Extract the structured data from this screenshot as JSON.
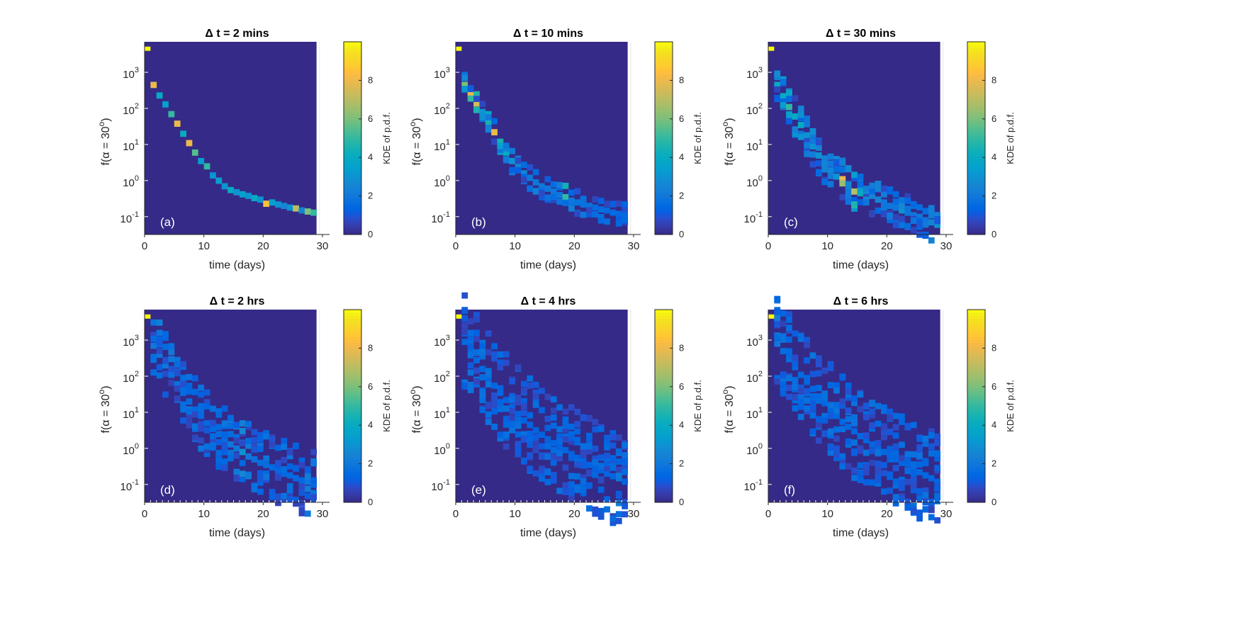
{
  "chart_data": [
    {
      "type": "heatmap",
      "title": "Δ t = 2 mins",
      "panel_label": "(a)",
      "xlabel": "time (days)",
      "ylabel": "f(α = 30°)",
      "xlim": [
        0,
        30
      ],
      "xticks": [
        "0",
        "10",
        "20",
        "30"
      ],
      "yscale": "log",
      "yticks": [
        "10^-1",
        "10^0",
        "10^1",
        "10^2",
        "10^3"
      ],
      "colorbar": {
        "label": "KDE of p.d.f.",
        "range": [
          0,
          10
        ],
        "ticks": [
          "0",
          "2",
          "4",
          "6",
          "8"
        ]
      },
      "spread": 0.05,
      "initial_cell": {
        "day": 0.5,
        "f": 4500,
        "density": 10
      },
      "ridge": [
        {
          "day": 1.5,
          "f": 450,
          "density": 8.0
        },
        {
          "day": 2.5,
          "f": 230,
          "density": 4.0
        },
        {
          "day": 3.5,
          "f": 130,
          "density": 3.5
        },
        {
          "day": 4.5,
          "f": 70,
          "density": 5.0
        },
        {
          "day": 5.5,
          "f": 38,
          "density": 8.0
        },
        {
          "day": 6.5,
          "f": 20,
          "density": 4.0
        },
        {
          "day": 7.5,
          "f": 11,
          "density": 8.0
        },
        {
          "day": 8.5,
          "f": 6,
          "density": 5.5
        },
        {
          "day": 9.5,
          "f": 3.5,
          "density": 3.5
        },
        {
          "day": 10.5,
          "f": 2.5,
          "density": 5.0
        },
        {
          "day": 11.5,
          "f": 1.4,
          "density": 3.0
        },
        {
          "day": 12.5,
          "f": 1.0,
          "density": 3.5
        },
        {
          "day": 13.5,
          "f": 0.7,
          "density": 3.0
        },
        {
          "day": 14.5,
          "f": 0.55,
          "density": 4.0
        },
        {
          "day": 15.5,
          "f": 0.48,
          "density": 3.0
        },
        {
          "day": 16.5,
          "f": 0.42,
          "density": 3.5
        },
        {
          "day": 17.5,
          "f": 0.38,
          "density": 3.0
        },
        {
          "day": 18.5,
          "f": 0.33,
          "density": 4.0
        },
        {
          "day": 19.5,
          "f": 0.3,
          "density": 3.0
        },
        {
          "day": 20.5,
          "f": 0.23,
          "density": 8.5
        },
        {
          "day": 21.5,
          "f": 0.25,
          "density": 3.5
        },
        {
          "day": 22.5,
          "f": 0.22,
          "density": 3.0
        },
        {
          "day": 23.5,
          "f": 0.2,
          "density": 2.5
        },
        {
          "day": 24.5,
          "f": 0.18,
          "density": 3.0
        },
        {
          "day": 25.5,
          "f": 0.17,
          "density": 7.0
        },
        {
          "day": 26.5,
          "f": 0.15,
          "density": 2.5
        },
        {
          "day": 27.5,
          "f": 0.14,
          "density": 6.0
        },
        {
          "day": 28.5,
          "f": 0.13,
          "density": 5.0
        }
      ]
    },
    {
      "type": "heatmap",
      "title": "Δ t = 10 mins",
      "panel_label": "(b)",
      "xlabel": "time (days)",
      "ylabel": "f(α = 30°)",
      "xlim": [
        0,
        30
      ],
      "xticks": [
        "0",
        "10",
        "20",
        "30"
      ],
      "yscale": "log",
      "yticks": [
        "10^-1",
        "10^0",
        "10^1",
        "10^2",
        "10^3"
      ],
      "colorbar": {
        "label": "KDE of p.d.f.",
        "range": [
          0,
          10
        ],
        "ticks": [
          "0",
          "2",
          "4",
          "6",
          "8"
        ]
      },
      "spread": 0.25,
      "initial_cell": {
        "day": 0.5,
        "f": 4500,
        "density": 10
      },
      "ridge": [
        {
          "day": 1.5,
          "f": 450,
          "density": 6.0
        },
        {
          "day": 2.5,
          "f": 270,
          "density": 8.0
        },
        {
          "day": 3.5,
          "f": 140,
          "density": 7.5
        },
        {
          "day": 4.5,
          "f": 80,
          "density": 3.0
        },
        {
          "day": 5.5,
          "f": 40,
          "density": 4.5
        },
        {
          "day": 6.5,
          "f": 22,
          "density": 8.0
        },
        {
          "day": 7.5,
          "f": 12,
          "density": 4.5
        },
        {
          "day": 8.5,
          "f": 6,
          "density": 4.0
        },
        {
          "day": 9.5,
          "f": 3.5,
          "density": 3.0
        },
        {
          "day": 10.5,
          "f": 2.5,
          "density": 2.5
        },
        {
          "day": 11.5,
          "f": 1.6,
          "density": 2.5
        },
        {
          "day": 12.5,
          "f": 1.2,
          "density": 2.0
        },
        {
          "day": 13.5,
          "f": 0.9,
          "density": 2.0
        },
        {
          "day": 14.5,
          "f": 0.7,
          "density": 2.0
        },
        {
          "day": 15.5,
          "f": 0.6,
          "density": 2.0
        },
        {
          "day": 16.5,
          "f": 0.5,
          "density": 2.0
        },
        {
          "day": 17.5,
          "f": 0.4,
          "density": 2.0
        },
        {
          "day": 18.5,
          "f": 0.35,
          "density": 5.0
        },
        {
          "day": 19.5,
          "f": 0.28,
          "density": 2.0
        },
        {
          "day": 20.5,
          "f": 0.25,
          "density": 1.8
        },
        {
          "day": 21.5,
          "f": 0.22,
          "density": 1.8
        },
        {
          "day": 22.5,
          "f": 0.2,
          "density": 1.8
        },
        {
          "day": 23.5,
          "f": 0.18,
          "density": 1.6
        },
        {
          "day": 24.5,
          "f": 0.16,
          "density": 1.6
        },
        {
          "day": 25.5,
          "f": 0.15,
          "density": 1.5
        },
        {
          "day": 26.5,
          "f": 0.13,
          "density": 1.5
        },
        {
          "day": 27.5,
          "f": 0.12,
          "density": 1.5
        },
        {
          "day": 28.5,
          "f": 0.11,
          "density": 1.5
        }
      ]
    },
    {
      "type": "heatmap",
      "title": "Δ t = 30 mins",
      "panel_label": "(c)",
      "xlabel": "time (days)",
      "ylabel": "f(α = 30°)",
      "xlim": [
        0,
        30
      ],
      "xticks": [
        "0",
        "10",
        "20",
        "30"
      ],
      "yscale": "log",
      "yticks": [
        "10^-1",
        "10^0",
        "10^1",
        "10^2",
        "10^3"
      ],
      "colorbar": {
        "label": "KDE of p.d.f.",
        "range": [
          0,
          10
        ],
        "ticks": [
          "0",
          "2",
          "4",
          "6",
          "8"
        ]
      },
      "spread": 0.4,
      "initial_cell": {
        "day": 0.5,
        "f": 4500,
        "density": 10
      },
      "ridge": [
        {
          "day": 1.5,
          "f": 450,
          "density": 4.0
        },
        {
          "day": 2.5,
          "f": 220,
          "density": 4.0
        },
        {
          "day": 3.5,
          "f": 110,
          "density": 5.0
        },
        {
          "day": 4.5,
          "f": 60,
          "density": 4.0
        },
        {
          "day": 5.5,
          "f": 35,
          "density": 4.0
        },
        {
          "day": 6.5,
          "f": 18,
          "density": 3.0
        },
        {
          "day": 7.5,
          "f": 9,
          "density": 3.0
        },
        {
          "day": 8.5,
          "f": 5,
          "density": 3.0
        },
        {
          "day": 9.5,
          "f": 3,
          "density": 2.5
        },
        {
          "day": 10.5,
          "f": 2.0,
          "density": 2.5
        },
        {
          "day": 11.5,
          "f": 1.3,
          "density": 3.0
        },
        {
          "day": 12.5,
          "f": 1.1,
          "density": 8.0
        },
        {
          "day": 13.5,
          "f": 0.8,
          "density": 2.5
        },
        {
          "day": 14.5,
          "f": 0.5,
          "density": 7.0
        },
        {
          "day": 15.5,
          "f": 0.45,
          "density": 4.0
        },
        {
          "day": 16.5,
          "f": 0.45,
          "density": 3.0
        },
        {
          "day": 17.5,
          "f": 0.38,
          "density": 2.5
        },
        {
          "day": 18.5,
          "f": 0.3,
          "density": 2.5
        },
        {
          "day": 19.5,
          "f": 0.25,
          "density": 2.0
        },
        {
          "day": 20.5,
          "f": 0.2,
          "density": 2.0
        },
        {
          "day": 21.5,
          "f": 0.18,
          "density": 2.0
        },
        {
          "day": 22.5,
          "f": 0.15,
          "density": 3.0
        },
        {
          "day": 23.5,
          "f": 0.13,
          "density": 2.0
        },
        {
          "day": 24.5,
          "f": 0.11,
          "density": 2.0
        },
        {
          "day": 25.5,
          "f": 0.1,
          "density": 2.0
        },
        {
          "day": 26.5,
          "f": 0.08,
          "density": 2.0
        },
        {
          "day": 27.5,
          "f": 0.07,
          "density": 2.5
        },
        {
          "day": 28.5,
          "f": 0.06,
          "density": 3.0
        }
      ]
    },
    {
      "type": "heatmap",
      "title": "Δ t = 2 hrs",
      "panel_label": "(d)",
      "xlabel": "time (days)",
      "ylabel": "f(α = 30°)",
      "xlim": [
        0,
        30
      ],
      "xticks": [
        "0",
        "10",
        "20",
        "30"
      ],
      "yscale": "log",
      "yticks": [
        "10^-1",
        "10^0",
        "10^1",
        "10^2",
        "10^3"
      ],
      "colorbar": {
        "label": "KDE of p.d.f.",
        "range": [
          0,
          10
        ],
        "ticks": [
          "0",
          "2",
          "4",
          "6",
          "8"
        ]
      },
      "spread": 0.7,
      "initial_cell": {
        "day": 0.5,
        "f": 4500,
        "density": 10
      },
      "ridge": [
        {
          "day": 1.5,
          "f": 700,
          "density": 2.0
        },
        {
          "day": 2.5,
          "f": 400,
          "density": 2.0
        },
        {
          "day": 3.5,
          "f": 200,
          "density": 2.0
        },
        {
          "day": 4.5,
          "f": 110,
          "density": 1.8
        },
        {
          "day": 5.5,
          "f": 60,
          "density": 1.8
        },
        {
          "day": 6.5,
          "f": 35,
          "density": 1.6
        },
        {
          "day": 7.5,
          "f": 20,
          "density": 1.6
        },
        {
          "day": 8.5,
          "f": 12,
          "density": 1.5
        },
        {
          "day": 9.5,
          "f": 8,
          "density": 1.5
        },
        {
          "day": 10.5,
          "f": 5,
          "density": 1.5
        },
        {
          "day": 11.5,
          "f": 3.5,
          "density": 1.5
        },
        {
          "day": 12.5,
          "f": 2.5,
          "density": 1.6
        },
        {
          "day": 13.5,
          "f": 1.8,
          "density": 1.6
        },
        {
          "day": 14.5,
          "f": 1.3,
          "density": 2.0
        },
        {
          "day": 15.5,
          "f": 1.0,
          "density": 2.0
        },
        {
          "day": 16.5,
          "f": 0.8,
          "density": 3.0
        },
        {
          "day": 17.5,
          "f": 0.6,
          "density": 2.0
        },
        {
          "day": 18.5,
          "f": 0.5,
          "density": 1.8
        },
        {
          "day": 19.5,
          "f": 0.4,
          "density": 1.6
        },
        {
          "day": 20.5,
          "f": 0.35,
          "density": 1.6
        },
        {
          "day": 21.5,
          "f": 0.3,
          "density": 1.5
        },
        {
          "day": 22.5,
          "f": 0.25,
          "density": 1.5
        },
        {
          "day": 23.5,
          "f": 0.2,
          "density": 1.5
        },
        {
          "day": 24.5,
          "f": 0.18,
          "density": 1.5
        },
        {
          "day": 25.5,
          "f": 0.15,
          "density": 1.5
        },
        {
          "day": 26.5,
          "f": 0.13,
          "density": 1.5
        },
        {
          "day": 27.5,
          "f": 0.12,
          "density": 2.0
        },
        {
          "day": 28.5,
          "f": 0.1,
          "density": 1.5
        }
      ]
    },
    {
      "type": "heatmap",
      "title": "Δ t = 4 hrs",
      "panel_label": "(e)",
      "xlabel": "time (days)",
      "ylabel": "f(α = 30°)",
      "xlim": [
        0,
        30
      ],
      "xticks": [
        "0",
        "10",
        "20",
        "30"
      ],
      "yscale": "log",
      "yticks": [
        "10^-1",
        "10^0",
        "10^1",
        "10^2",
        "10^3"
      ],
      "colorbar": {
        "label": "KDE of p.d.f.",
        "range": [
          0,
          10
        ],
        "ticks": [
          "0",
          "2",
          "4",
          "6",
          "8"
        ]
      },
      "spread": 1.0,
      "initial_cell": {
        "day": 0.5,
        "f": 4500,
        "density": 10
      },
      "ridge": [
        {
          "day": 1.5,
          "f": 900,
          "density": 1.5
        },
        {
          "day": 2.5,
          "f": 500,
          "density": 1.5
        },
        {
          "day": 3.5,
          "f": 280,
          "density": 1.5
        },
        {
          "day": 4.5,
          "f": 160,
          "density": 1.5
        },
        {
          "day": 5.5,
          "f": 90,
          "density": 1.4
        },
        {
          "day": 6.5,
          "f": 55,
          "density": 1.4
        },
        {
          "day": 7.5,
          "f": 35,
          "density": 1.4
        },
        {
          "day": 8.5,
          "f": 22,
          "density": 1.3
        },
        {
          "day": 9.5,
          "f": 14,
          "density": 1.3
        },
        {
          "day": 10.5,
          "f": 9,
          "density": 1.3
        },
        {
          "day": 11.5,
          "f": 6,
          "density": 1.3
        },
        {
          "day": 12.5,
          "f": 4.5,
          "density": 1.3
        },
        {
          "day": 13.5,
          "f": 3.2,
          "density": 1.3
        },
        {
          "day": 14.5,
          "f": 2.4,
          "density": 1.3
        },
        {
          "day": 15.5,
          "f": 1.8,
          "density": 1.3
        },
        {
          "day": 16.5,
          "f": 1.4,
          "density": 1.3
        },
        {
          "day": 17.5,
          "f": 1.1,
          "density": 1.3
        },
        {
          "day": 18.5,
          "f": 0.9,
          "density": 1.3
        },
        {
          "day": 19.5,
          "f": 0.7,
          "density": 1.3
        },
        {
          "day": 20.5,
          "f": 0.55,
          "density": 1.3
        },
        {
          "day": 21.5,
          "f": 0.45,
          "density": 1.3
        },
        {
          "day": 22.5,
          "f": 0.35,
          "density": 1.3
        },
        {
          "day": 23.5,
          "f": 0.3,
          "density": 1.3
        },
        {
          "day": 24.5,
          "f": 0.25,
          "density": 1.3
        },
        {
          "day": 25.5,
          "f": 0.2,
          "density": 1.3
        },
        {
          "day": 26.5,
          "f": 0.17,
          "density": 1.3
        },
        {
          "day": 27.5,
          "f": 0.15,
          "density": 2.0
        },
        {
          "day": 28.5,
          "f": 0.12,
          "density": 1.3
        }
      ]
    },
    {
      "type": "heatmap",
      "title": "Δ t = 6 hrs",
      "panel_label": "(f)",
      "xlabel": "time (days)",
      "ylabel": "f(α = 30°)",
      "xlim": [
        0,
        30
      ],
      "xticks": [
        "0",
        "10",
        "20",
        "30"
      ],
      "yscale": "log",
      "yticks": [
        "10^-1",
        "10^0",
        "10^1",
        "10^2",
        "10^3"
      ],
      "colorbar": {
        "label": "KDE of p.d.f.",
        "range": [
          0,
          10
        ],
        "ticks": [
          "0",
          "2",
          "4",
          "6",
          "8"
        ]
      },
      "spread": 1.0,
      "initial_cell": {
        "day": 0.5,
        "f": 4500,
        "density": 10
      },
      "ridge": [
        {
          "day": 1.5,
          "f": 800,
          "density": 2.0
        },
        {
          "day": 2.5,
          "f": 500,
          "density": 1.6
        },
        {
          "day": 3.5,
          "f": 300,
          "density": 1.6
        },
        {
          "day": 4.5,
          "f": 180,
          "density": 1.5
        },
        {
          "day": 5.5,
          "f": 110,
          "density": 1.5
        },
        {
          "day": 6.5,
          "f": 70,
          "density": 1.4
        },
        {
          "day": 7.5,
          "f": 45,
          "density": 1.4
        },
        {
          "day": 8.5,
          "f": 28,
          "density": 1.4
        },
        {
          "day": 9.5,
          "f": 18,
          "density": 1.4
        },
        {
          "day": 10.5,
          "f": 12,
          "density": 1.4
        },
        {
          "day": 11.5,
          "f": 8,
          "density": 1.4
        },
        {
          "day": 12.5,
          "f": 5.5,
          "density": 1.4
        },
        {
          "day": 13.5,
          "f": 4,
          "density": 1.4
        },
        {
          "day": 14.5,
          "f": 3,
          "density": 1.4
        },
        {
          "day": 15.5,
          "f": 2.2,
          "density": 1.4
        },
        {
          "day": 16.5,
          "f": 1.7,
          "density": 1.4
        },
        {
          "day": 17.5,
          "f": 1.3,
          "density": 1.4
        },
        {
          "day": 18.5,
          "f": 1.0,
          "density": 1.4
        },
        {
          "day": 19.5,
          "f": 0.8,
          "density": 1.4
        },
        {
          "day": 20.5,
          "f": 0.65,
          "density": 1.4
        },
        {
          "day": 21.5,
          "f": 0.5,
          "density": 1.4
        },
        {
          "day": 22.5,
          "f": 0.4,
          "density": 1.4
        },
        {
          "day": 23.5,
          "f": 0.33,
          "density": 1.4
        },
        {
          "day": 24.5,
          "f": 0.27,
          "density": 1.4
        },
        {
          "day": 25.5,
          "f": 0.22,
          "density": 1.4
        },
        {
          "day": 26.5,
          "f": 0.18,
          "density": 1.4
        },
        {
          "day": 27.5,
          "f": 0.15,
          "density": 1.4
        },
        {
          "day": 28.5,
          "f": 0.12,
          "density": 1.4
        }
      ]
    }
  ]
}
